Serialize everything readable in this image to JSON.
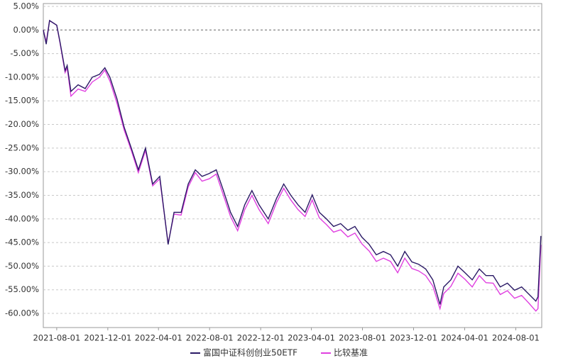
{
  "chart_data": {
    "type": "line",
    "x": [
      "2021-06-30",
      "2021-07-07",
      "2021-07-15",
      "2021-08-01",
      "2021-08-09",
      "2021-08-21",
      "2021-08-26",
      "2021-09-04",
      "2021-09-21",
      "2021-10-08",
      "2021-10-25",
      "2021-11-11",
      "2021-11-24",
      "2021-12-06",
      "2021-12-23",
      "2022-01-09",
      "2022-01-26",
      "2022-02-12",
      "2022-03-01",
      "2022-03-18",
      "2022-04-04",
      "2022-04-24",
      "2022-05-08",
      "2022-05-25",
      "2022-06-11",
      "2022-06-28",
      "2022-07-14",
      "2022-07-31",
      "2022-08-17",
      "2022-09-03",
      "2022-09-20",
      "2022-10-07",
      "2022-10-24",
      "2022-11-10",
      "2022-11-27",
      "2022-12-19",
      "2023-01-08",
      "2023-01-25",
      "2023-02-11",
      "2023-02-28",
      "2023-03-17",
      "2023-04-03",
      "2023-04-20",
      "2023-05-07",
      "2023-05-24",
      "2023-06-10",
      "2023-06-27",
      "2023-07-14",
      "2023-07-31",
      "2023-08-17",
      "2023-09-03",
      "2023-09-20",
      "2023-10-07",
      "2023-10-24",
      "2023-11-10",
      "2023-11-27",
      "2023-12-13",
      "2023-12-30",
      "2024-01-16",
      "2024-02-02",
      "2024-02-11",
      "2024-02-28",
      "2024-03-16",
      "2024-04-02",
      "2024-04-19",
      "2024-05-06",
      "2024-05-22",
      "2024-06-08",
      "2024-06-25",
      "2024-07-12",
      "2024-07-29",
      "2024-08-15",
      "2024-09-01",
      "2024-09-18",
      "2024-09-23",
      "2024-09-30"
    ],
    "series": [
      {
        "name": "富国中证科创创业50ETF",
        "color": "#2b1a66",
        "values": [
          0,
          -3,
          2,
          1,
          -2.6,
          -8.6,
          -7.5,
          -13,
          -11.6,
          -12.4,
          -10,
          -9.4,
          -8,
          -10,
          -14.6,
          -20.6,
          -25,
          -29.6,
          -25,
          -32.6,
          -31,
          -45.4,
          -38.6,
          -38.6,
          -32.6,
          -29.6,
          -31,
          -30.4,
          -29.6,
          -34,
          -38.6,
          -41.6,
          -37,
          -34,
          -37,
          -40,
          -35.6,
          -32.6,
          -35,
          -37,
          -38.6,
          -34.9,
          -38.6,
          -40,
          -41.6,
          -41,
          -42.4,
          -41.6,
          -43.9,
          -45.4,
          -47.6,
          -46.9,
          -47.6,
          -50,
          -46.9,
          -49.1,
          -49.6,
          -50.6,
          -52.9,
          -58.1,
          -54.4,
          -52.9,
          -50,
          -51.4,
          -52.9,
          -50.6,
          -52,
          -52,
          -54.4,
          -53.6,
          -55.1,
          -54.4,
          -55.9,
          -57.4,
          -56.5,
          -43.6
        ]
      },
      {
        "name": "比较基准",
        "color": "#e040e0",
        "values": [
          0,
          -2.5,
          2,
          1,
          -2.8,
          -9,
          -8,
          -14,
          -12.5,
          -13,
          -11,
          -10,
          -8.5,
          -10.8,
          -15.5,
          -21.2,
          -25.5,
          -30.2,
          -25.5,
          -33,
          -31.5,
          -45.2,
          -39,
          -39.2,
          -33.2,
          -30.2,
          -32,
          -31.5,
          -30.5,
          -35,
          -39.5,
          -42.5,
          -38,
          -35,
          -38,
          -41,
          -36.5,
          -33.5,
          -36,
          -38,
          -39.5,
          -36,
          -39.8,
          -41.2,
          -42.8,
          -42.3,
          -43.8,
          -43,
          -45.3,
          -46.8,
          -49,
          -48.3,
          -49,
          -51.4,
          -48.3,
          -50.5,
          -51,
          -52,
          -54.2,
          -59,
          -55.8,
          -54.3,
          -51.5,
          -52.8,
          -54.4,
          -52,
          -53.5,
          -53.6,
          -56,
          -55.2,
          -56.8,
          -56.2,
          -57.8,
          -59.5,
          -59,
          -45.5
        ]
      }
    ],
    "xlim": [
      "2021-06-30",
      "2024-10-02"
    ],
    "xticks": [
      "2021-08-01",
      "2021-12-01",
      "2022-04-01",
      "2022-08-01",
      "2022-12-01",
      "2023-04-01",
      "2023-08-01",
      "2023-12-01",
      "2024-04-01",
      "2024-08-01"
    ],
    "ylim": [
      -63,
      5.6
    ],
    "yticks": [
      {
        "value": 5,
        "label": "5.00%"
      },
      {
        "value": 0,
        "label": "0.00%"
      },
      {
        "value": -5,
        "label": "-5.00%"
      },
      {
        "value": -10,
        "label": "-10.00%"
      },
      {
        "value": -15,
        "label": "-15.00%"
      },
      {
        "value": -20,
        "label": "-20.00%"
      },
      {
        "value": -25,
        "label": "-25.00%"
      },
      {
        "value": -30,
        "label": "-30.00%"
      },
      {
        "value": -35,
        "label": "-35.00%"
      },
      {
        "value": -40,
        "label": "-40.00%"
      },
      {
        "value": -45,
        "label": "-45.00%"
      },
      {
        "value": -50,
        "label": "-50.00%"
      },
      {
        "value": -55,
        "label": "-55.00%"
      },
      {
        "value": -60,
        "label": "-60.00%"
      }
    ],
    "grid": true,
    "legend": "bottom"
  }
}
